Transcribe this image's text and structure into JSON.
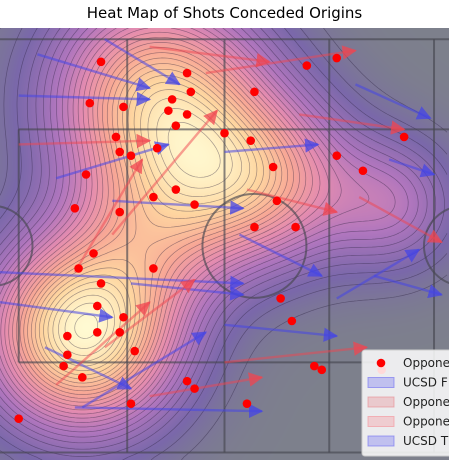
{
  "chart_data": {
    "type": "heatmap",
    "title": "Heat Map of Shots Conceded Origins",
    "xlim": [
      0,
      120
    ],
    "ylim": [
      0,
      115
    ],
    "grid": true,
    "legend_placement": "bottom-right",
    "legend": [
      {
        "label": "Oppone",
        "kind": "marker",
        "color": "#ff0000"
      },
      {
        "label": "UCSD F",
        "kind": "patch",
        "color": "#6f6cf2"
      },
      {
        "label": "Oppone",
        "kind": "patch",
        "color": "#e8888f"
      },
      {
        "label": "Oppone",
        "kind": "patch",
        "color": "#f58f98"
      },
      {
        "label": "UCSD T",
        "kind": "patch",
        "color": "#6f6cf2"
      }
    ],
    "heat_centers": [
      {
        "x": 22,
        "y": 34,
        "weight": 1.0,
        "spread": 17
      },
      {
        "x": 42,
        "y": 96,
        "weight": 0.78,
        "spread": 19
      },
      {
        "x": 60,
        "y": 75,
        "weight": 0.45,
        "spread": 16
      },
      {
        "x": 77,
        "y": 74,
        "weight": 0.3,
        "spread": 15
      },
      {
        "x": 105,
        "y": 68,
        "weight": 0.28,
        "spread": 12
      },
      {
        "x": 40,
        "y": 60,
        "weight": 0.3,
        "spread": 15
      }
    ],
    "shot_origins": [
      [
        27,
        106
      ],
      [
        50,
        103
      ],
      [
        82,
        105
      ],
      [
        90,
        107
      ],
      [
        24,
        95
      ],
      [
        33,
        94
      ],
      [
        51,
        98
      ],
      [
        46,
        96
      ],
      [
        68,
        98
      ],
      [
        45,
        93
      ],
      [
        50,
        92
      ],
      [
        47,
        89
      ],
      [
        60,
        87
      ],
      [
        31,
        86
      ],
      [
        32,
        82
      ],
      [
        35,
        81
      ],
      [
        42,
        83
      ],
      [
        67,
        85
      ],
      [
        108,
        86
      ],
      [
        90,
        81
      ],
      [
        73,
        78
      ],
      [
        97,
        77
      ],
      [
        23,
        76
      ],
      [
        41,
        70
      ],
      [
        47,
        72
      ],
      [
        52,
        68
      ],
      [
        20,
        67
      ],
      [
        32,
        66
      ],
      [
        68,
        62
      ],
      [
        74,
        69
      ],
      [
        79,
        62
      ],
      [
        25,
        55
      ],
      [
        21,
        51
      ],
      [
        27,
        47
      ],
      [
        41,
        51
      ],
      [
        26,
        41
      ],
      [
        33,
        38
      ],
      [
        75,
        43
      ],
      [
        18,
        33
      ],
      [
        26,
        34
      ],
      [
        32,
        34
      ],
      [
        78,
        37
      ],
      [
        18,
        28
      ],
      [
        36,
        29
      ],
      [
        17,
        25
      ],
      [
        22,
        22
      ],
      [
        84,
        25
      ],
      [
        86,
        24
      ],
      [
        50,
        21
      ],
      [
        52,
        19
      ],
      [
        35,
        15
      ],
      [
        66,
        15
      ],
      [
        102,
        24
      ],
      [
        5,
        11
      ]
    ],
    "passes_ucsd": [
      [
        [
          0,
          50
        ],
        [
          65,
          47
        ]
      ],
      [
        [
          10,
          108
        ],
        [
          40,
          99
        ]
      ],
      [
        [
          90,
          43
        ],
        [
          112,
          56
        ]
      ],
      [
        [
          20,
          14
        ],
        [
          70,
          13
        ]
      ],
      [
        [
          5,
          97
        ],
        [
          40,
          96
        ]
      ],
      [
        [
          60,
          36
        ],
        [
          90,
          33
        ]
      ],
      [
        [
          64,
          60
        ],
        [
          86,
          49
        ]
      ],
      [
        [
          95,
          100
        ],
        [
          115,
          91
        ]
      ],
      [
        [
          22,
          14
        ],
        [
          55,
          34
        ]
      ],
      [
        [
          15,
          75
        ],
        [
          45,
          84
        ]
      ],
      [
        [
          35,
          47
        ],
        [
          65,
          44
        ]
      ],
      [
        [
          100,
          49
        ],
        [
          118,
          44
        ]
      ],
      [
        [
          28,
          112
        ],
        [
          48,
          100
        ]
      ],
      [
        [
          104,
          80
        ],
        [
          116,
          76
        ]
      ],
      [
        [
          12,
          30
        ],
        [
          35,
          19
        ]
      ],
      [
        [
          30,
          69
        ],
        [
          65,
          67
        ]
      ],
      [
        [
          60,
          82
        ],
        [
          85,
          84
        ]
      ],
      [
        [
          0,
          42
        ],
        [
          30,
          38
        ]
      ]
    ],
    "passes_opponent": [
      [
        [
          30,
          60
        ],
        [
          58,
          93
        ]
      ],
      [
        [
          15,
          20
        ],
        [
          40,
          42
        ]
      ],
      [
        [
          55,
          103
        ],
        [
          95,
          109
        ]
      ],
      [
        [
          80,
          92
        ],
        [
          108,
          88
        ]
      ],
      [
        [
          28,
          30
        ],
        [
          52,
          48
        ]
      ],
      [
        [
          5,
          84
        ],
        [
          40,
          85
        ]
      ],
      [
        [
          20,
          50
        ],
        [
          38,
          80
        ]
      ],
      [
        [
          60,
          26
        ],
        [
          98,
          30
        ]
      ],
      [
        [
          96,
          70
        ],
        [
          118,
          58
        ]
      ],
      [
        [
          40,
          17
        ],
        [
          70,
          22
        ]
      ],
      [
        [
          66,
          72
        ],
        [
          90,
          66
        ]
      ],
      [
        [
          40,
          110
        ],
        [
          72,
          106
        ]
      ]
    ]
  }
}
